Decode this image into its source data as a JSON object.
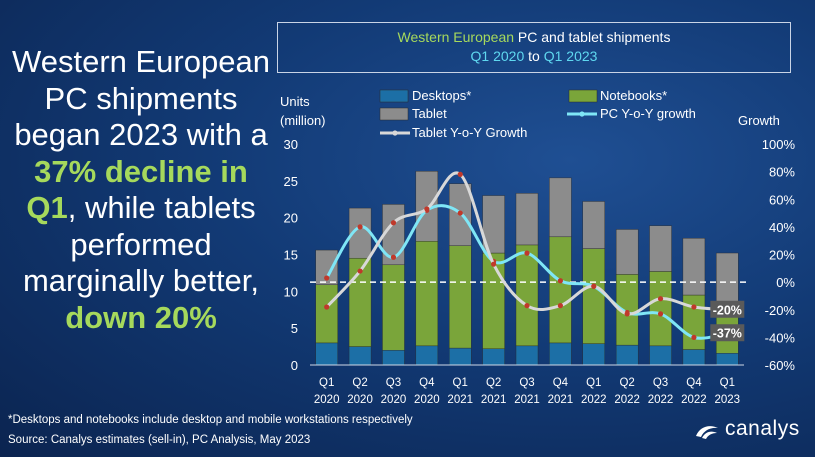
{
  "headline": {
    "part1": "Western European PC shipments began 2023 with a ",
    "highlight1": "37% decline in Q1",
    "part2": ", while tablets performed marginally better, ",
    "highlight2": "down 20%"
  },
  "title": {
    "line1_a": "Western European",
    "line1_b": " PC and tablet shipments",
    "line2_a": "Q1 2020",
    "line2_b": " to ",
    "line2_c": "Q1 2023"
  },
  "footnote": "*Desktops and notebooks  include desktop and mobile workstations respectively",
  "source": "Source:  Canalys estimates (sell-in), PC Analysis, May 2023",
  "logo": {
    "text": "canalys",
    "icon": "canalys-swirl-icon"
  },
  "colors": {
    "desktops": "#1c6fa6",
    "notebooks": "#7aa53a",
    "tablet": "#8c8c8c",
    "pc_growth": "#7fe6f6",
    "tablet_growth": "#d8d8d8",
    "marker": "#c0392b",
    "highlight": "#a6d95c"
  },
  "chart_data": {
    "type": "bar",
    "stacked": true,
    "categories": [
      "Q1 2020",
      "Q2 2020",
      "Q3 2020",
      "Q4 2020",
      "Q1 2021",
      "Q2 2021",
      "Q3 2021",
      "Q4 2021",
      "Q1 2022",
      "Q2 2022",
      "Q3 2022",
      "Q4 2022",
      "Q1 2023"
    ],
    "category_lines": [
      [
        "Q1",
        "2020"
      ],
      [
        "Q2",
        "2020"
      ],
      [
        "Q3",
        "2020"
      ],
      [
        "Q4",
        "2020"
      ],
      [
        "Q1",
        "2021"
      ],
      [
        "Q2",
        "2021"
      ],
      [
        "Q3",
        "2021"
      ],
      [
        "Q4",
        "2021"
      ],
      [
        "Q1",
        "2022"
      ],
      [
        "Q2",
        "2022"
      ],
      [
        "Q3",
        "2022"
      ],
      [
        "Q4",
        "2022"
      ],
      [
        "Q1",
        "2023"
      ]
    ],
    "ylabel": [
      "Units",
      "(million)"
    ],
    "y2label": "Growth",
    "ylim": [
      0,
      30
    ],
    "y_ticks": [
      0,
      5,
      10,
      15,
      20,
      25,
      30
    ],
    "y2lim": [
      -60,
      100
    ],
    "y2_ticks": [
      "-60%",
      "-40%",
      "-20%",
      "0%",
      "20%",
      "40%",
      "60%",
      "80%",
      "100%"
    ],
    "y2_tick_values": [
      -60,
      -40,
      -20,
      0,
      20,
      40,
      60,
      80,
      100
    ],
    "bar_series": [
      {
        "name": "Desktops*",
        "values": [
          3.0,
          2.5,
          2.0,
          2.6,
          2.3,
          2.2,
          2.6,
          3.0,
          2.9,
          2.7,
          2.6,
          2.1,
          1.6
        ]
      },
      {
        "name": "Notebooks*",
        "values": [
          7.9,
          12.0,
          11.6,
          14.2,
          13.9,
          13.0,
          13.7,
          14.4,
          12.9,
          9.6,
          10.1,
          7.4,
          6.6
        ]
      },
      {
        "name": "Tablet",
        "values": [
          4.7,
          6.8,
          8.2,
          9.5,
          8.4,
          7.8,
          7.0,
          8.0,
          6.4,
          6.1,
          6.2,
          7.7,
          7.0
        ]
      }
    ],
    "line_series": [
      {
        "name": "PC Y-o-Y growth",
        "values": [
          3,
          40,
          18,
          52,
          50,
          15,
          21,
          1,
          -3,
          -22,
          -23,
          -40,
          -37
        ]
      },
      {
        "name": "Tablet Y-o-Y Growth",
        "values": [
          -18,
          8,
          43,
          53,
          78,
          13,
          -17,
          -17,
          -3,
          -23,
          -12,
          -18,
          -20
        ]
      }
    ],
    "annotations": [
      {
        "series": "Tablet Y-o-Y Growth",
        "index": 12,
        "text": "-20%"
      },
      {
        "series": "PC Y-o-Y growth",
        "index": 12,
        "text": "-37%"
      }
    ],
    "zero_line": "dashed",
    "legend_position": "top"
  }
}
